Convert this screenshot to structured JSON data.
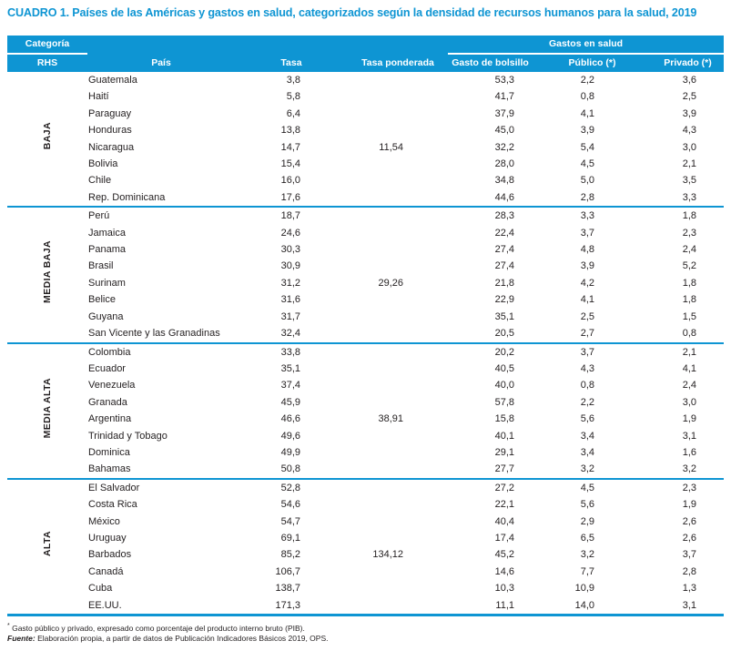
{
  "title": "CUADRO 1. Países de las Américas y gastos en salud, categorizados según la densidad de recursos humanos para la salud, 2019",
  "colors": {
    "accent": "#0E95D3",
    "header_text": "#FFFFFF",
    "body_text": "#231F20"
  },
  "header": {
    "category_label": "Categoría",
    "rhs_label": "RHS",
    "country": "País",
    "rate": "Tasa",
    "weighted_rate": "Tasa ponderada",
    "health_spending_group": "Gastos en salud",
    "out_of_pocket": "Gasto de bolsillo",
    "public": "Público (*)",
    "private": "Privado (*)"
  },
  "groups": [
    {
      "label": "BAJA",
      "rows": [
        {
          "country": "Guatemala",
          "rate": "3,8",
          "weighted": "",
          "oop": "53,3",
          "public": "2,2",
          "private": "3,6"
        },
        {
          "country": "Haití",
          "rate": "5,8",
          "weighted": "",
          "oop": "41,7",
          "public": "0,8",
          "private": "2,5"
        },
        {
          "country": "Paraguay",
          "rate": "6,4",
          "weighted": "",
          "oop": "37,9",
          "public": "4,1",
          "private": "3,9"
        },
        {
          "country": "Honduras",
          "rate": "13,8",
          "weighted": "",
          "oop": "45,0",
          "public": "3,9",
          "private": "4,3"
        },
        {
          "country": "Nicaragua",
          "rate": "14,7",
          "weighted": "11,54",
          "oop": "32,2",
          "public": "5,4",
          "private": "3,0"
        },
        {
          "country": "Bolivia",
          "rate": "15,4",
          "weighted": "",
          "oop": "28,0",
          "public": "4,5",
          "private": "2,1"
        },
        {
          "country": "Chile",
          "rate": "16,0",
          "weighted": "",
          "oop": "34,8",
          "public": "5,0",
          "private": "3,5"
        },
        {
          "country": "Rep. Dominicana",
          "rate": "17,6",
          "weighted": "",
          "oop": "44,6",
          "public": "2,8",
          "private": "3,3"
        }
      ]
    },
    {
      "label": "MEDIA BAJA",
      "rows": [
        {
          "country": "Perú",
          "rate": "18,7",
          "weighted": "",
          "oop": "28,3",
          "public": "3,3",
          "private": "1,8"
        },
        {
          "country": "Jamaica",
          "rate": "24,6",
          "weighted": "",
          "oop": "22,4",
          "public": "3,7",
          "private": "2,3"
        },
        {
          "country": "Panama",
          "rate": "30,3",
          "weighted": "",
          "oop": "27,4",
          "public": "4,8",
          "private": "2,4"
        },
        {
          "country": "Brasil",
          "rate": "30,9",
          "weighted": "",
          "oop": "27,4",
          "public": "3,9",
          "private": "5,2"
        },
        {
          "country": "Surinam",
          "rate": "31,2",
          "weighted": "29,26",
          "oop": "21,8",
          "public": "4,2",
          "private": "1,8"
        },
        {
          "country": "Belice",
          "rate": "31,6",
          "weighted": "",
          "oop": "22,9",
          "public": "4,1",
          "private": "1,8"
        },
        {
          "country": "Guyana",
          "rate": "31,7",
          "weighted": "",
          "oop": "35,1",
          "public": "2,5",
          "private": "1,5"
        },
        {
          "country": "San Vicente y las Granadinas",
          "rate": "32,4",
          "weighted": "",
          "oop": "20,5",
          "public": "2,7",
          "private": "0,8"
        }
      ]
    },
    {
      "label": "MEDIA ALTA",
      "rows": [
        {
          "country": "Colombia",
          "rate": "33,8",
          "weighted": "",
          "oop": "20,2",
          "public": "3,7",
          "private": "2,1"
        },
        {
          "country": "Ecuador",
          "rate": "35,1",
          "weighted": "",
          "oop": "40,5",
          "public": "4,3",
          "private": "4,1"
        },
        {
          "country": "Venezuela",
          "rate": "37,4",
          "weighted": "",
          "oop": "40,0",
          "public": "0,8",
          "private": "2,4"
        },
        {
          "country": "Granada",
          "rate": "45,9",
          "weighted": "",
          "oop": "57,8",
          "public": "2,2",
          "private": "3,0"
        },
        {
          "country": "Argentina",
          "rate": "46,6",
          "weighted": "38,91",
          "oop": "15,8",
          "public": "5,6",
          "private": "1,9"
        },
        {
          "country": "Trinidad y Tobago",
          "rate": "49,6",
          "weighted": "",
          "oop": "40,1",
          "public": "3,4",
          "private": "3,1"
        },
        {
          "country": "Dominica",
          "rate": "49,9",
          "weighted": "",
          "oop": "29,1",
          "public": "3,4",
          "private": "1,6"
        },
        {
          "country": "Bahamas",
          "rate": "50,8",
          "weighted": "",
          "oop": "27,7",
          "public": "3,2",
          "private": "3,2"
        }
      ]
    },
    {
      "label": "ALTA",
      "rows": [
        {
          "country": "El Salvador",
          "rate": "52,8",
          "weighted": "",
          "oop": "27,2",
          "public": "4,5",
          "private": "2,3"
        },
        {
          "country": "Costa Rica",
          "rate": "54,6",
          "weighted": "",
          "oop": "22,1",
          "public": "5,6",
          "private": "1,9"
        },
        {
          "country": "México",
          "rate": "54,7",
          "weighted": "",
          "oop": "40,4",
          "public": "2,9",
          "private": "2,6"
        },
        {
          "country": "Uruguay",
          "rate": "69,1",
          "weighted": "",
          "oop": "17,4",
          "public": "6,5",
          "private": "2,6"
        },
        {
          "country": "Barbados",
          "rate": "85,2",
          "weighted": "134,12",
          "oop": "45,2",
          "public": "3,2",
          "private": "3,7"
        },
        {
          "country": "Canadá",
          "rate": "106,7",
          "weighted": "",
          "oop": "14,6",
          "public": "7,7",
          "private": "2,8"
        },
        {
          "country": "Cuba",
          "rate": "138,7",
          "weighted": "",
          "oop": "10,3",
          "public": "10,9",
          "private": "1,3"
        },
        {
          "country": "EE.UU.",
          "rate": "171,3",
          "weighted": "",
          "oop": "11,1",
          "public": "14,0",
          "private": "3,1"
        }
      ]
    }
  ],
  "footnotes": {
    "note_symbol": "*",
    "note_text": " Gasto público y privado, expresado como porcentaje del producto interno bruto (PIB).",
    "source_label": "Fuente:",
    "source_text": " Elaboración propia, a partir de datos de Publicación Indicadores Básicos 2019, OPS."
  }
}
